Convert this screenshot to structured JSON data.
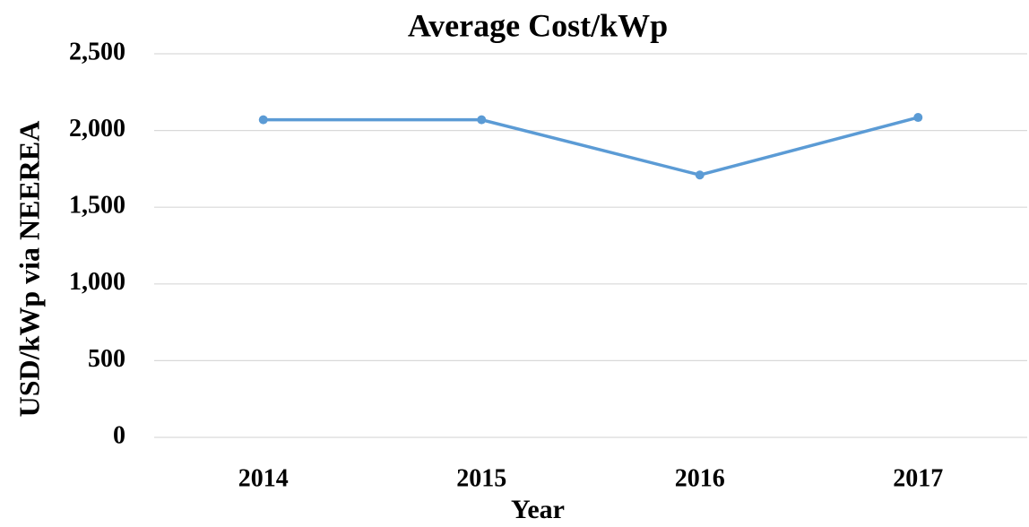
{
  "chart_data": {
    "type": "line",
    "title": "Average Cost/kWp",
    "x_label": "Year",
    "y_label": "USD/kWp via NEEREA",
    "categories": [
      "2014",
      "2015",
      "2016",
      "2017"
    ],
    "series": [
      {
        "name": "Average Cost/kWp",
        "color": "#5b9bd5",
        "values": [
          2070,
          2070,
          1710,
          2085
        ]
      }
    ],
    "ylim": [
      0,
      2500
    ],
    "yticks": [
      0,
      500,
      {
        "value": 1000,
        "label": "1,000"
      },
      {
        "value": 1500,
        "label": "1,500"
      },
      {
        "value": 2000,
        "label": "2,000"
      },
      {
        "value": 2500,
        "label": "2,500"
      }
    ],
    "grid": true
  }
}
